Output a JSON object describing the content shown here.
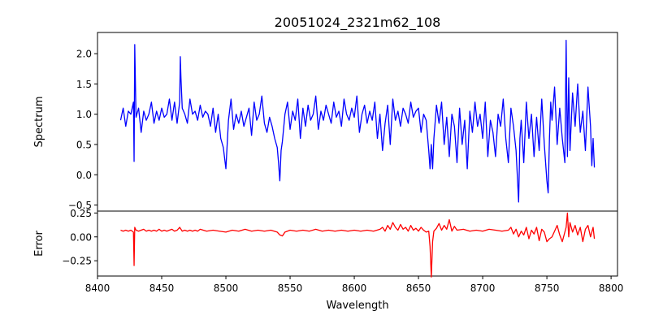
{
  "chart_data": {
    "type": "line",
    "title": "20051024_2321m62_108",
    "xlabel": "Wavelength",
    "xlim": [
      8400,
      8805
    ],
    "x_ticks": [
      8400,
      8450,
      8500,
      8550,
      8600,
      8650,
      8700,
      8750,
      8800
    ],
    "panels": [
      {
        "name": "spectrum",
        "ylabel": "Spectrum",
        "ylim": [
          -0.6,
          2.35
        ],
        "y_ticks": [
          -0.5,
          0.0,
          0.5,
          1.0,
          1.5,
          2.0
        ],
        "y_tick_labels": [
          "−0.5",
          "0.0",
          "0.5",
          "1.0",
          "1.5",
          "2.0"
        ],
        "color": "#0000ff",
        "series": [
          {
            "x": [
              8418,
              8420,
              8422,
              8424,
              8426,
              8428,
              8428.5,
              8429,
              8430,
              8432,
              8434,
              8436,
              8438,
              8440,
              8442,
              8444,
              8446,
              8448,
              8450,
              8452,
              8454,
              8456,
              8458,
              8460,
              8462,
              8464,
              8464.5,
              8465,
              8466,
              8468,
              8470,
              8472,
              8474,
              8476,
              8478,
              8480,
              8482,
              8484,
              8486,
              8488,
              8490,
              8492,
              8494,
              8496,
              8498,
              8500,
              8502,
              8504,
              8506,
              8508,
              8510,
              8512,
              8514,
              8516,
              8518,
              8520,
              8522,
              8524,
              8526,
              8528,
              8530,
              8532,
              8534,
              8536,
              8538,
              8540,
              8541,
              8542,
              8543,
              8544,
              8546,
              8548,
              8550,
              8552,
              8554,
              8556,
              8558,
              8560,
              8562,
              8564,
              8566,
              8568,
              8570,
              8572,
              8574,
              8576,
              8578,
              8580,
              8582,
              8584,
              8586,
              8588,
              8590,
              8592,
              8594,
              8596,
              8598,
              8600,
              8602,
              8604,
              8606,
              8608,
              8610,
              8612,
              8614,
              8616,
              8618,
              8620,
              8622,
              8624,
              8626,
              8628,
              8630,
              8632,
              8634,
              8636,
              8638,
              8640,
              8642,
              8644,
              8646,
              8648,
              8650,
              8652,
              8654,
              8656,
              8658,
              8659,
              8660,
              8661,
              8662,
              8664,
              8666,
              8668,
              8670,
              8672,
              8674,
              8676,
              8678,
              8680,
              8682,
              8684,
              8686,
              8688,
              8690,
              8692,
              8694,
              8696,
              8698,
              8700,
              8702,
              8704,
              8706,
              8708,
              8710,
              8712,
              8714,
              8716,
              8718,
              8720,
              8722,
              8724,
              8726,
              8728,
              8729,
              8730,
              8732,
              8734,
              8736,
              8738,
              8740,
              8742,
              8744,
              8746,
              8748,
              8750,
              8751,
              8752,
              8753,
              8754,
              8756,
              8758,
              8760,
              8762,
              8764,
              8765,
              8766,
              8767,
              8768,
              8770,
              8772,
              8774,
              8776,
              8778,
              8780,
              8782,
              8784,
              8785,
              8786,
              8787
            ],
            "y": [
              0.9,
              1.1,
              0.8,
              1.05,
              1.0,
              1.2,
              0.22,
              2.15,
              0.95,
              1.1,
              0.7,
              1.05,
              0.9,
              1.0,
              1.2,
              0.85,
              1.05,
              0.9,
              1.1,
              0.95,
              1.0,
              1.25,
              0.9,
              1.2,
              0.85,
              1.2,
              1.95,
              1.6,
              1.1,
              1.0,
              0.85,
              1.25,
              1.0,
              1.05,
              0.9,
              1.15,
              0.95,
              1.05,
              1.0,
              0.8,
              1.1,
              0.7,
              1.0,
              0.6,
              0.45,
              0.1,
              0.9,
              1.25,
              0.75,
              1.0,
              0.85,
              1.05,
              0.8,
              0.95,
              1.1,
              0.65,
              1.2,
              0.9,
              1.0,
              1.3,
              0.85,
              0.7,
              0.95,
              0.8,
              0.6,
              0.45,
              0.2,
              -0.1,
              0.4,
              0.55,
              1.0,
              1.2,
              0.75,
              1.05,
              0.9,
              1.25,
              0.6,
              1.1,
              0.8,
              1.15,
              0.9,
              1.0,
              1.3,
              0.75,
              1.05,
              0.9,
              1.15,
              1.0,
              0.85,
              1.2,
              0.95,
              1.05,
              0.8,
              1.25,
              1.0,
              0.9,
              1.1,
              0.95,
              1.3,
              0.7,
              1.0,
              1.15,
              0.85,
              1.05,
              0.9,
              1.2,
              0.6,
              1.0,
              0.4,
              0.85,
              1.15,
              0.5,
              1.25,
              0.9,
              1.05,
              0.8,
              1.1,
              1.0,
              0.85,
              1.2,
              0.95,
              1.05,
              1.1,
              0.7,
              1.0,
              0.9,
              0.4,
              0.1,
              0.5,
              0.1,
              0.6,
              1.15,
              0.85,
              1.2,
              0.5,
              0.95,
              0.3,
              1.0,
              0.8,
              0.2,
              1.1,
              0.5,
              0.9,
              0.1,
              1.05,
              0.7,
              1.2,
              0.8,
              1.0,
              0.6,
              1.2,
              0.3,
              0.9,
              0.7,
              0.3,
              1.0,
              0.8,
              1.25,
              0.6,
              0.2,
              1.1,
              0.8,
              0.4,
              -0.45,
              0.6,
              0.9,
              0.2,
              1.2,
              0.6,
              1.0,
              0.3,
              0.95,
              0.4,
              1.25,
              0.5,
              -0.1,
              -0.3,
              0.6,
              1.2,
              0.9,
              1.45,
              0.5,
              1.1,
              0.6,
              0.2,
              2.22,
              0.3,
              1.6,
              0.4,
              1.35,
              0.8,
              1.5,
              0.7,
              1.05,
              0.4,
              1.45,
              0.8,
              0.15,
              0.6,
              0.12
            ]
          }
        ]
      },
      {
        "name": "error",
        "ylabel": "Error",
        "ylim": [
          -0.41,
          0.27
        ],
        "y_ticks": [
          -0.25,
          0.0,
          0.25
        ],
        "y_tick_labels": [
          "−0.25",
          "0.00",
          "0.25"
        ],
        "color": "#ff0000",
        "series": [
          {
            "x": [
              8418,
              8420,
              8422,
              8424,
              8426,
              8428,
              8428.5,
              8429,
              8430,
              8432,
              8434,
              8436,
              8438,
              8440,
              8442,
              8444,
              8446,
              8448,
              8450,
              8452,
              8454,
              8456,
              8458,
              8460,
              8462,
              8464,
              8466,
              8468,
              8470,
              8472,
              8474,
              8476,
              8478,
              8480,
              8485,
              8490,
              8495,
              8500,
              8505,
              8510,
              8515,
              8520,
              8525,
              8530,
              8535,
              8540,
              8542,
              8544,
              8546,
              8550,
              8555,
              8560,
              8565,
              8570,
              8575,
              8580,
              8585,
              8590,
              8595,
              8600,
              8605,
              8610,
              8615,
              8620,
              8622,
              8624,
              8626,
              8628,
              8630,
              8632,
              8634,
              8636,
              8638,
              8640,
              8642,
              8644,
              8646,
              8648,
              8650,
              8652,
              8654,
              8656,
              8658,
              8659,
              8660,
              8661,
              8662,
              8664,
              8666,
              8668,
              8670,
              8672,
              8674,
              8676,
              8678,
              8680,
              8685,
              8690,
              8695,
              8700,
              8705,
              8710,
              8715,
              8720,
              8722,
              8724,
              8726,
              8728,
              8730,
              8732,
              8734,
              8736,
              8738,
              8740,
              8742,
              8744,
              8746,
              8748,
              8750,
              8752,
              8754,
              8756,
              8758,
              8760,
              8762,
              8764,
              8765,
              8766,
              8767,
              8768,
              8770,
              8772,
              8774,
              8776,
              8778,
              8780,
              8782,
              8784,
              8786,
              8787
            ],
            "y": [
              0.07,
              0.06,
              0.07,
              0.06,
              0.07,
              0.05,
              -0.3,
              0.1,
              0.07,
              0.06,
              0.07,
              0.08,
              0.06,
              0.07,
              0.06,
              0.07,
              0.06,
              0.08,
              0.06,
              0.07,
              0.06,
              0.07,
              0.08,
              0.06,
              0.07,
              0.1,
              0.06,
              0.07,
              0.06,
              0.07,
              0.06,
              0.07,
              0.06,
              0.08,
              0.06,
              0.07,
              0.06,
              0.05,
              0.07,
              0.06,
              0.08,
              0.06,
              0.07,
              0.06,
              0.07,
              0.05,
              0.02,
              0.01,
              0.05,
              0.07,
              0.06,
              0.07,
              0.06,
              0.08,
              0.06,
              0.07,
              0.06,
              0.07,
              0.06,
              0.07,
              0.06,
              0.07,
              0.06,
              0.08,
              0.1,
              0.06,
              0.12,
              0.08,
              0.15,
              0.1,
              0.07,
              0.13,
              0.08,
              0.1,
              0.06,
              0.12,
              0.07,
              0.09,
              0.06,
              0.1,
              0.07,
              0.05,
              0.06,
              -0.1,
              -0.42,
              -0.05,
              0.06,
              0.09,
              0.14,
              0.07,
              0.12,
              0.08,
              0.18,
              0.06,
              0.11,
              0.07,
              0.08,
              0.06,
              0.07,
              0.06,
              0.08,
              0.07,
              0.06,
              0.07,
              0.1,
              0.03,
              0.08,
              0.0,
              0.06,
              0.02,
              0.1,
              -0.02,
              0.07,
              0.03,
              0.1,
              -0.04,
              0.08,
              0.05,
              -0.05,
              -0.02,
              0.0,
              0.06,
              0.12,
              0.02,
              -0.05,
              0.05,
              0.1,
              0.25,
              0.0,
              0.15,
              0.05,
              0.12,
              0.02,
              0.1,
              -0.05,
              0.08,
              0.12,
              0.0,
              0.1,
              -0.02
            ]
          }
        ]
      }
    ]
  }
}
